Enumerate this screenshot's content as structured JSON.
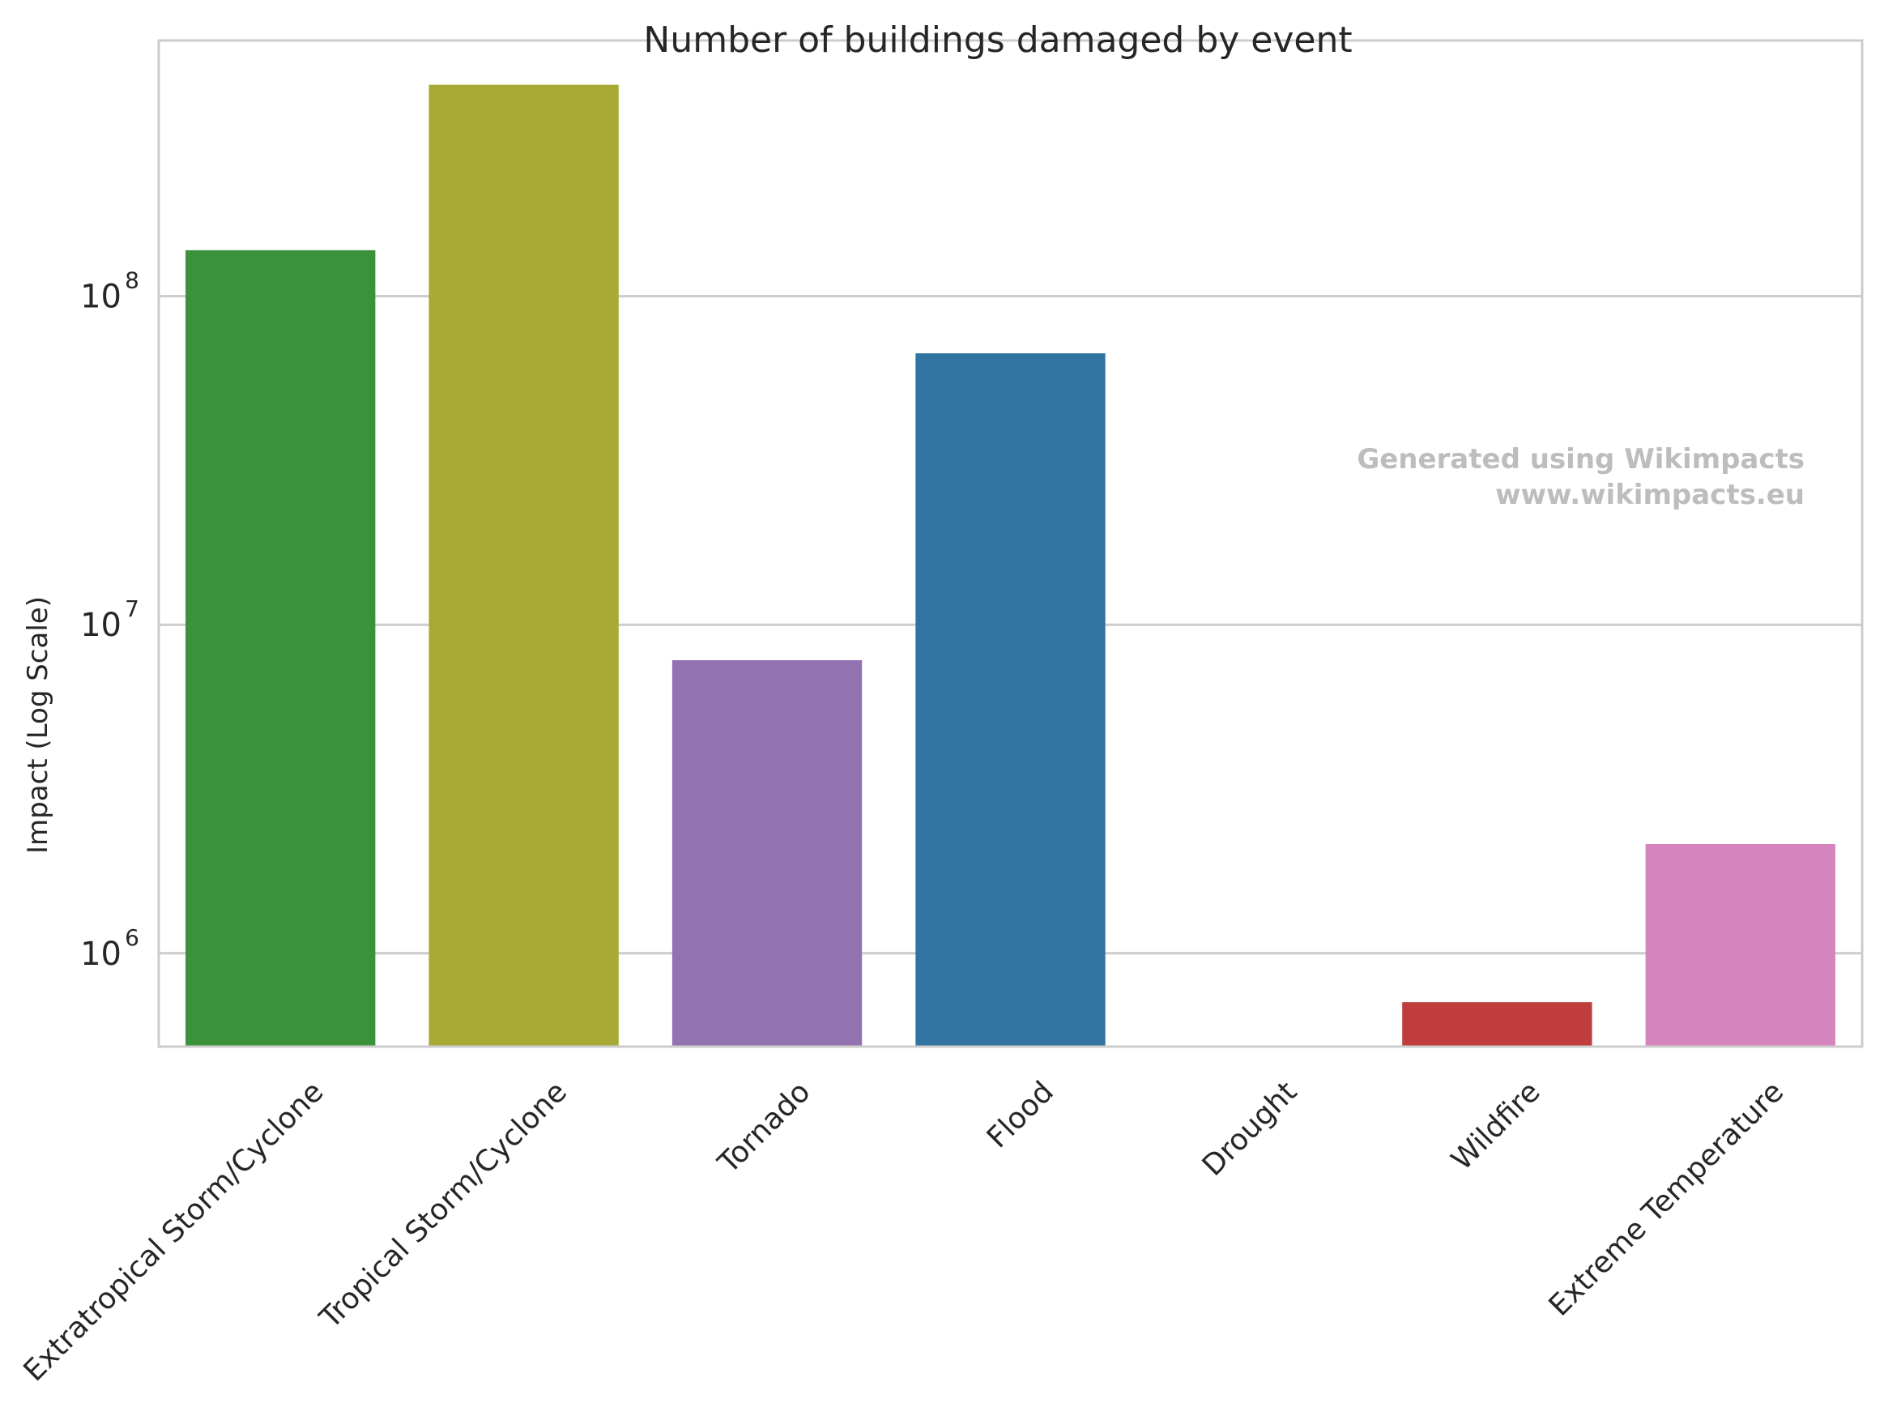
{
  "chart_data": {
    "type": "bar",
    "title": "Number of buildings damaged by event",
    "xlabel": "",
    "ylabel": "Impact (Log Scale)",
    "yscale": "log",
    "ylim": [
      520000,
      600000000
    ],
    "yticks": [
      {
        "value": 1000000,
        "base": "10",
        "exp": "6"
      },
      {
        "value": 10000000,
        "base": "10",
        "exp": "7"
      },
      {
        "value": 100000000,
        "base": "10",
        "exp": "8"
      }
    ],
    "grid": "horizontal",
    "categories": [
      "Extratropical Storm/Cyclone",
      "Tropical Storm/Cyclone",
      "Tornado",
      "Flood",
      "Drought",
      "Wildfire",
      "Extreme Temperature"
    ],
    "values": [
      138000000,
      440000000,
      7800000,
      67000000,
      null,
      710000,
      2150000
    ],
    "colors": [
      "#3a923a",
      "#a9aa35",
      "#9372b2",
      "#3274a1",
      "#7f7f7f",
      "#c03d3e",
      "#d684bd"
    ],
    "annotations": [
      "Generated using Wikimpacts",
      "www.wikimpacts.eu"
    ]
  }
}
